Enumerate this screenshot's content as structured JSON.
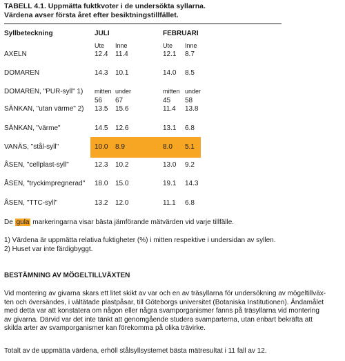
{
  "title": {
    "line1": "TABELL 4.1. Uppmätta fuktkvoter i de undersökta syllarna.",
    "line2": "Värdena avser första året efter besiktningstillfället."
  },
  "table": {
    "label_header": "Syllbeteckning",
    "col_juli": "JULI",
    "col_februari": "FEBRUARI",
    "rows": [
      {
        "label": "AXELN",
        "sub": [
          "Ute",
          "Inne",
          "Ute",
          "Inne"
        ],
        "values": [
          "12.4",
          "11.4",
          "12.1",
          "8.7"
        ]
      },
      {
        "label": "DOMAREN",
        "values": [
          "14.3",
          "10.1",
          "14.0",
          "8.5"
        ]
      },
      {
        "label": "DOMAREN, \"PUR-syll\" 1)",
        "sub": [
          "mitten",
          "under",
          "mitten",
          "under"
        ],
        "values": [
          "56",
          "67",
          "45",
          "58"
        ]
      },
      {
        "label": "SÄNKAN, \"utan värme\" 2)",
        "values": [
          "13.5",
          "15.6",
          "11.4",
          "13.8"
        ]
      },
      {
        "label": "SÄNKAN, \"värme\"",
        "values": [
          "14.5",
          "12.6",
          "13.1",
          "6.8"
        ]
      },
      {
        "label": "VANÄS, \"stål-syll\"",
        "values": [
          "10.0",
          "8.9",
          "8.0",
          "5.1"
        ]
      },
      {
        "label": "ÅSEN, \"cellplast-syll\"",
        "values": [
          "12.3",
          "10.2",
          "13.0",
          "9.2"
        ]
      },
      {
        "label": "ÅSEN, \"tryckimpregnerad\"",
        "values": [
          "18.0",
          "15.0",
          "19.1",
          "14.3"
        ]
      },
      {
        "label": "ÅSEN, \"TTC-syll\"",
        "values": [
          "13.2",
          "12.0",
          "11.1",
          "6.8"
        ]
      }
    ],
    "highlight_color": "#f6a623"
  },
  "notes": {
    "legend_pre": "De",
    "legend_word": "gula",
    "legend_post": "markeringarna visar bästa jämförande mätvärden vid varje tillfälle.",
    "footnote1": "1) Värdena är uppmätta relativa fuktigheter (%) i mitten respektive i undersidan av syllen.",
    "footnote2": "2) Huset var inte färdigbyggt."
  },
  "section": {
    "heading": "BESTÄMNING AV MÖGELTILLVÄXTEN",
    "paragraph_lines": [
      "Vid montering av givarna skars ett litet skikt av var och en av träsyllarna för undersökning av mögeltillväx-",
      "ten och översändes, i vältätade plastpåsar, till Göteborgs universitet (Botaniska Institutionen). Ändamålet",
      "med detta var att konstatera om någon eller några svamporganismer fanns på träsyllarna vid montering",
      "av givarna. Därvid var det inte tänkt att genomgående studera svamparterna, utan enbart bekräfta att",
      "skilda arter av svamporganismer kan förekomma på olika trävirke."
    ],
    "summary": "Totalt av de uppmätta värdena, erhöll stålsyllsystemet bästa mätresultat i 11 fall av 12."
  }
}
